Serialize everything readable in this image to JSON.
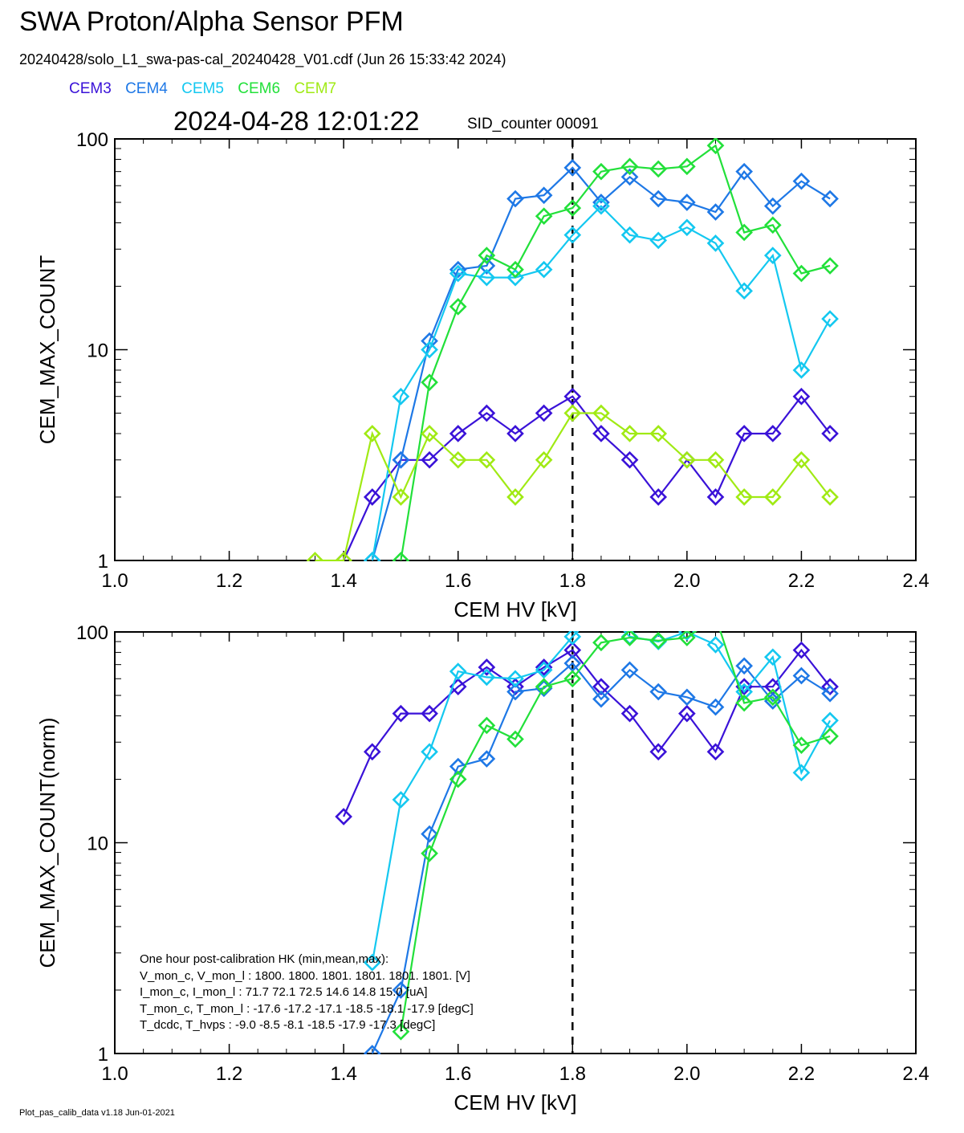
{
  "header": {
    "title": "SWA Proton/Alpha Sensor PFM",
    "subtitle": "20240428/solo_L1_swa-pas-cal_20240428_V01.cdf  (Jun 26 15:33:42 2024)",
    "datetime": "2024-04-28 12:01:22",
    "sid": "SID_counter 00091"
  },
  "legend": [
    {
      "name": "CEM3",
      "color": "#3a12d8"
    },
    {
      "name": "CEM4",
      "color": "#1e78e6"
    },
    {
      "name": "CEM5",
      "color": "#14c8f0"
    },
    {
      "name": "CEM6",
      "color": "#22e03a"
    },
    {
      "name": "CEM7",
      "color": "#a0ea14"
    }
  ],
  "hk": {
    "lines": [
      "One hour post-calibration HK (min,mean,max):",
      "V_mon_c, V_mon_l :   1800.  1800.  1801.      1801.  1801.  1801. [V]",
      "I_mon_c, I_mon_l :     71.7   72.1   72.5        14.6   14.8   15.0  [uA]",
      "T_mon_c, T_mon_l :   -17.6  -17.2  -17.1       -18.5  -18.1  -17.9  [degC]",
      "T_dcdc,    T_hvps :      -9.0   -8.5   -8.1       -18.5  -17.9  -17.3  [degC]"
    ]
  },
  "footer": "Plot_pas_calib_data v1.18 Jun-01-2021",
  "chart_data": [
    {
      "type": "line",
      "xlabel": "CEM HV [kV]",
      "ylabel": "CEM_MAX_COUNT",
      "xlim": [
        1.0,
        2.4
      ],
      "ylim": [
        1,
        100
      ],
      "yscale": "log",
      "xticks": [
        "1.0",
        "1.2",
        "1.4",
        "1.6",
        "1.8",
        "2.0",
        "2.2",
        "2.4"
      ],
      "yticks": [
        "1",
        "10",
        "100"
      ],
      "vline": 1.8,
      "series": [
        {
          "name": "CEM3",
          "color": "#3a12d8",
          "points": [
            [
              1.4,
              1
            ],
            [
              1.45,
              2
            ],
            [
              1.5,
              3
            ],
            [
              1.55,
              3
            ],
            [
              1.6,
              4
            ],
            [
              1.65,
              5
            ],
            [
              1.7,
              4
            ],
            [
              1.75,
              5
            ],
            [
              1.8,
              6
            ],
            [
              1.85,
              4
            ],
            [
              1.9,
              3
            ],
            [
              1.95,
              2
            ],
            [
              2.0,
              3
            ],
            [
              2.05,
              2
            ],
            [
              2.1,
              4
            ],
            [
              2.15,
              4
            ],
            [
              2.2,
              6
            ],
            [
              2.25,
              4
            ]
          ]
        },
        {
          "name": "CEM4",
          "color": "#1e78e6",
          "points": [
            [
              1.45,
              1
            ],
            [
              1.5,
              3
            ],
            [
              1.55,
              11
            ],
            [
              1.6,
              24
            ],
            [
              1.65,
              25
            ],
            [
              1.7,
              52
            ],
            [
              1.75,
              54
            ],
            [
              1.8,
              73
            ],
            [
              1.85,
              50
            ],
            [
              1.9,
              66
            ],
            [
              1.95,
              52
            ],
            [
              2.0,
              50
            ],
            [
              2.05,
              45
            ],
            [
              2.1,
              70
            ],
            [
              2.15,
              48
            ],
            [
              2.2,
              63
            ],
            [
              2.25,
              52
            ]
          ]
        },
        {
          "name": "CEM5",
          "color": "#14c8f0",
          "points": [
            [
              1.45,
              1
            ],
            [
              1.5,
              6
            ],
            [
              1.55,
              10
            ],
            [
              1.6,
              23
            ],
            [
              1.65,
              22
            ],
            [
              1.7,
              22
            ],
            [
              1.75,
              24
            ],
            [
              1.8,
              35
            ],
            [
              1.85,
              48
            ],
            [
              1.9,
              35
            ],
            [
              1.95,
              33
            ],
            [
              2.0,
              38
            ],
            [
              2.05,
              32
            ],
            [
              2.1,
              19
            ],
            [
              2.15,
              28
            ],
            [
              2.2,
              8
            ],
            [
              2.25,
              14
            ]
          ]
        },
        {
          "name": "CEM6",
          "color": "#22e03a",
          "points": [
            [
              1.5,
              1
            ],
            [
              1.55,
              7
            ],
            [
              1.6,
              16
            ],
            [
              1.65,
              28
            ],
            [
              1.7,
              24
            ],
            [
              1.75,
              43
            ],
            [
              1.8,
              47
            ],
            [
              1.85,
              70
            ],
            [
              1.9,
              74
            ],
            [
              1.95,
              72
            ],
            [
              2.0,
              74
            ],
            [
              2.05,
              93
            ],
            [
              2.1,
              36
            ],
            [
              2.15,
              39
            ],
            [
              2.2,
              23
            ],
            [
              2.25,
              25
            ]
          ]
        },
        {
          "name": "CEM7",
          "color": "#a0ea14",
          "points": [
            [
              1.35,
              1
            ],
            [
              1.4,
              1
            ],
            [
              1.45,
              4
            ],
            [
              1.5,
              2
            ],
            [
              1.55,
              4
            ],
            [
              1.6,
              3
            ],
            [
              1.65,
              3
            ],
            [
              1.7,
              2
            ],
            [
              1.75,
              3
            ],
            [
              1.8,
              5
            ],
            [
              1.85,
              5
            ],
            [
              1.9,
              4
            ],
            [
              1.95,
              4
            ],
            [
              2.0,
              3
            ],
            [
              2.05,
              3
            ],
            [
              2.1,
              2
            ],
            [
              2.15,
              2
            ],
            [
              2.2,
              3
            ],
            [
              2.25,
              2
            ]
          ]
        }
      ]
    },
    {
      "type": "line",
      "xlabel": "CEM HV [kV]",
      "ylabel": "CEM_MAX_COUNT(norm)",
      "xlim": [
        1.0,
        2.4
      ],
      "ylim": [
        1,
        100
      ],
      "yscale": "log",
      "xticks": [
        "1.0",
        "1.2",
        "1.4",
        "1.6",
        "1.8",
        "2.0",
        "2.2",
        "2.4"
      ],
      "yticks": [
        "1",
        "10",
        "100"
      ],
      "vline": 1.8,
      "series": [
        {
          "name": "CEM3",
          "color": "#3a12d8",
          "points": [
            [
              1.4,
              13.3
            ],
            [
              1.45,
              27
            ],
            [
              1.5,
              41
            ],
            [
              1.55,
              41
            ],
            [
              1.6,
              55
            ],
            [
              1.65,
              68
            ],
            [
              1.7,
              55
            ],
            [
              1.75,
              68
            ],
            [
              1.8,
              82
            ],
            [
              1.85,
              55
            ],
            [
              1.9,
              41
            ],
            [
              1.95,
              27
            ],
            [
              2.0,
              41
            ],
            [
              2.05,
              27
            ],
            [
              2.1,
              55
            ],
            [
              2.15,
              55
            ],
            [
              2.2,
              82
            ],
            [
              2.25,
              55
            ]
          ]
        },
        {
          "name": "CEM4",
          "color": "#1e78e6",
          "points": [
            [
              1.45,
              1
            ],
            [
              1.5,
              2
            ],
            [
              1.55,
              11
            ],
            [
              1.6,
              23
            ],
            [
              1.65,
              25
            ],
            [
              1.7,
              52
            ],
            [
              1.75,
              54
            ],
            [
              1.8,
              71
            ],
            [
              1.85,
              48
            ],
            [
              1.9,
              66
            ],
            [
              1.95,
              52
            ],
            [
              2.0,
              49
            ],
            [
              2.05,
              44
            ],
            [
              2.1,
              69
            ],
            [
              2.15,
              47
            ],
            [
              2.2,
              62
            ],
            [
              2.25,
              51
            ]
          ]
        },
        {
          "name": "CEM5",
          "color": "#14c8f0",
          "points": [
            [
              1.45,
              2.7
            ],
            [
              1.5,
              16
            ],
            [
              1.55,
              27
            ],
            [
              1.6,
              65
            ],
            [
              1.65,
              61
            ],
            [
              1.7,
              60
            ],
            [
              1.75,
              66
            ],
            [
              1.8,
              95
            ],
            [
              1.85,
              130
            ],
            [
              1.9,
              95
            ],
            [
              1.95,
              90
            ],
            [
              2.0,
              100
            ],
            [
              2.05,
              87
            ],
            [
              2.1,
              52
            ],
            [
              2.15,
              76
            ],
            [
              2.2,
              21.5
            ],
            [
              2.25,
              38
            ]
          ]
        },
        {
          "name": "CEM6",
          "color": "#22e03a",
          "points": [
            [
              1.5,
              1.27
            ],
            [
              1.55,
              8.9
            ],
            [
              1.6,
              20
            ],
            [
              1.65,
              36
            ],
            [
              1.7,
              31
            ],
            [
              1.75,
              55
            ],
            [
              1.8,
              60
            ],
            [
              1.85,
              89
            ],
            [
              1.9,
              94
            ],
            [
              1.95,
              91
            ],
            [
              2.0,
              94
            ],
            [
              2.05,
              118
            ],
            [
              2.1,
              46
            ],
            [
              2.15,
              49
            ],
            [
              2.2,
              29
            ],
            [
              2.25,
              32
            ]
          ]
        }
      ]
    }
  ]
}
